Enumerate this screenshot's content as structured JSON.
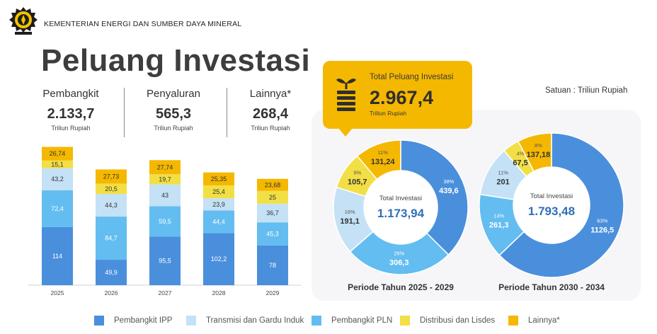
{
  "header": {
    "ministry": "KEMENTERIAN ENERGI DAN SUMBER DAYA MINERAL",
    "title": "Peluang Investasi"
  },
  "summary": [
    {
      "label": "Pembangkit",
      "value": "2.133,7",
      "unit": "Triliun Rupiah"
    },
    {
      "label": "Penyaluran",
      "value": "565,3",
      "unit": "Triliun Rupiah"
    },
    {
      "label": "Lainnya*",
      "value": "268,4",
      "unit": "Triliun Rupiah"
    }
  ],
  "satuan": "Satuan : Triliun Rupiah",
  "total": {
    "label": "Total Peluang Investasi",
    "value": "2.967,4",
    "unit": "Triliun Rupiah"
  },
  "colors": {
    "ipp": "#4a8fdc",
    "transmisi": "#c4e1f6",
    "pln": "#63bdf0",
    "distribusi": "#f2df45",
    "lainnya": "#f5b800"
  },
  "chart_data": [
    {
      "type": "bar",
      "stacked": true,
      "categories": [
        "2025",
        "2026",
        "2027",
        "2028",
        "2029"
      ],
      "series": [
        {
          "name": "Pembangkit IPP",
          "color": "#4a8fdc",
          "values": [
            114,
            49.9,
            95.5,
            102.2,
            78
          ],
          "labels": [
            "114",
            "49,9",
            "95,5",
            "102,2",
            "78"
          ]
        },
        {
          "name": "Pembangkit PLN",
          "color": "#63bdf0",
          "values": [
            72.4,
            84.7,
            59.5,
            44.4,
            45.3
          ],
          "labels": [
            "72,4",
            "84,7",
            "59,5",
            "44,4",
            "45,3"
          ]
        },
        {
          "name": "Transmisi dan Gardu Induk",
          "color": "#c4e1f6",
          "values": [
            43.2,
            44.3,
            43,
            23.9,
            36.7
          ],
          "labels": [
            "43,2",
            "44,3",
            "43",
            "23,9",
            "36,7"
          ]
        },
        {
          "name": "Distribusi dan Lisdes",
          "color": "#f2df45",
          "values": [
            15.1,
            20.5,
            19.7,
            25.4,
            25
          ],
          "labels": [
            "15,1",
            "20,5",
            "19,7",
            "25,4",
            "25"
          ]
        },
        {
          "name": "Lainnya*",
          "color": "#f5b800",
          "values": [
            26.74,
            27.73,
            27.74,
            25.35,
            23.68
          ],
          "labels": [
            "26,74",
            "27,73",
            "27,74",
            "25,35",
            "23,68"
          ]
        }
      ]
    },
    {
      "type": "pie",
      "donut": true,
      "period": "Periode Tahun 2025 - 2029",
      "center_label": "Total Investasi",
      "center_value": "1.173,94",
      "slices": [
        {
          "name": "Pembangkit IPP",
          "value": 439.6,
          "label": "439,6",
          "pct": "38%",
          "color": "#4a8fdc"
        },
        {
          "name": "Pembangkit PLN",
          "value": 306.3,
          "label": "306,3",
          "pct": "26%",
          "color": "#63bdf0"
        },
        {
          "name": "Transmisi dan Gardu Induk",
          "value": 191.1,
          "label": "191,1",
          "pct": "16%",
          "color": "#c4e1f6"
        },
        {
          "name": "Distribusi dan Lisdes",
          "value": 105.7,
          "label": "105,7",
          "pct": "9%",
          "color": "#f2df45"
        },
        {
          "name": "Lainnya*",
          "value": 131.24,
          "label": "131,24",
          "pct": "11%",
          "color": "#f5b800"
        }
      ]
    },
    {
      "type": "pie",
      "donut": true,
      "period": "Periode Tahun 2030 - 2034",
      "center_label": "Total Investasi",
      "center_value": "1.793,48",
      "slices": [
        {
          "name": "Pembangkit IPP",
          "value": 1126.5,
          "label": "1126,5",
          "pct": "63%",
          "color": "#4a8fdc"
        },
        {
          "name": "Pembangkit PLN",
          "value": 261.3,
          "label": "261,3",
          "pct": "14%",
          "color": "#63bdf0"
        },
        {
          "name": "Transmisi dan Gardu Induk",
          "value": 201,
          "label": "201",
          "pct": "11%",
          "color": "#c4e1f6"
        },
        {
          "name": "Distribusi dan Lisdes",
          "value": 67.5,
          "label": "67,5",
          "pct": "4%",
          "color": "#f2df45"
        },
        {
          "name": "Lainnya*",
          "value": 137.18,
          "label": "137,18",
          "pct": "8%",
          "color": "#f5b800"
        }
      ]
    }
  ],
  "legend": [
    {
      "label": "Pembangkit IPP",
      "color": "#4a8fdc"
    },
    {
      "label": "Transmisi dan Gardu Induk",
      "color": "#c4e1f6"
    },
    {
      "label": "Pembangkit PLN",
      "color": "#63bdf0"
    },
    {
      "label": "Distribusi dan Lisdes",
      "color": "#f2df45"
    },
    {
      "label": "Lainnya*",
      "color": "#f5b800"
    }
  ]
}
